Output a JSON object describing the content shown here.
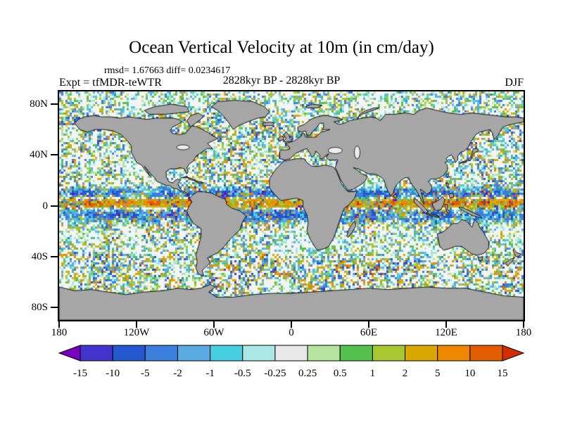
{
  "title": "Ocean Vertical Velocity at 10m (in cm/day)",
  "annotations": {
    "stats": "rmsd= 1.67663 diff= 0.0234617",
    "experiment": "Expt = tfMDR-teWTR",
    "period": "2828kyr BP - 2828kyr BP",
    "season": "DJF"
  },
  "chart_data": {
    "type": "heatmap",
    "title": "Ocean Vertical Velocity at 10m (in cm/day)",
    "variable": "ocean vertical velocity at 10 m depth (difference field)",
    "units": "cm/day",
    "season": "DJF",
    "experiment_diff": "tfMDR-teWTR",
    "period": "2828kyr BP - 2828kyr BP",
    "rmsd": 1.67663,
    "diff": 0.0234617,
    "projection": "equirectangular",
    "lon_range": [
      -180,
      180
    ],
    "lat_range": [
      -90,
      90
    ],
    "grid": false,
    "legend_position": "bottom",
    "axes": {
      "lat_ticks": [
        {
          "label": "80N",
          "lat": 80
        },
        {
          "label": "40N",
          "lat": 40
        },
        {
          "label": "0",
          "lat": 0
        },
        {
          "label": "40S",
          "lat": -40
        },
        {
          "label": "80S",
          "lat": -80
        }
      ],
      "lon_ticks": [
        {
          "label": "180",
          "lon": -180
        },
        {
          "label": "120W",
          "lon": -120
        },
        {
          "label": "60W",
          "lon": -60
        },
        {
          "label": "0",
          "lon": 0
        },
        {
          "label": "60E",
          "lon": 60
        },
        {
          "label": "120E",
          "lon": 120
        },
        {
          "label": "180",
          "lon": 180
        }
      ]
    },
    "colorbar": {
      "orientation": "horizontal",
      "levels": [
        -15,
        -10,
        -5,
        -2,
        -1,
        -0.5,
        -0.25,
        0.25,
        0.5,
        1,
        2,
        5,
        10,
        15
      ],
      "labels": [
        "-15",
        "-10",
        "-5",
        "-2",
        "-1",
        "-0.5",
        "-0.25",
        "0.25",
        "0.5",
        "1",
        "2",
        "5",
        "10",
        "15"
      ],
      "colors": [
        "#7a00c0",
        "#4433cc",
        "#2457d0",
        "#3a7fdc",
        "#5aaae2",
        "#45cfe0",
        "#a9e8e6",
        "#e8e8e8",
        "#b5e49e",
        "#54c24c",
        "#a8c832",
        "#d8a800",
        "#ee8600",
        "#e25c00",
        "#d32e00"
      ]
    },
    "map_colors": {
      "land": "#a6a6a6",
      "ocean_background": "#f4f4f4",
      "coastline": "#000000"
    },
    "note": "Speckled per-gridcell field over the oceans; strong positive (orange/red) band just north of the equator flanked by negative (blue/cyan) bands; dense green/cyan patches in the Southern Ocean and northern storm tracks; near-zero (white) subtropical gyres."
  }
}
